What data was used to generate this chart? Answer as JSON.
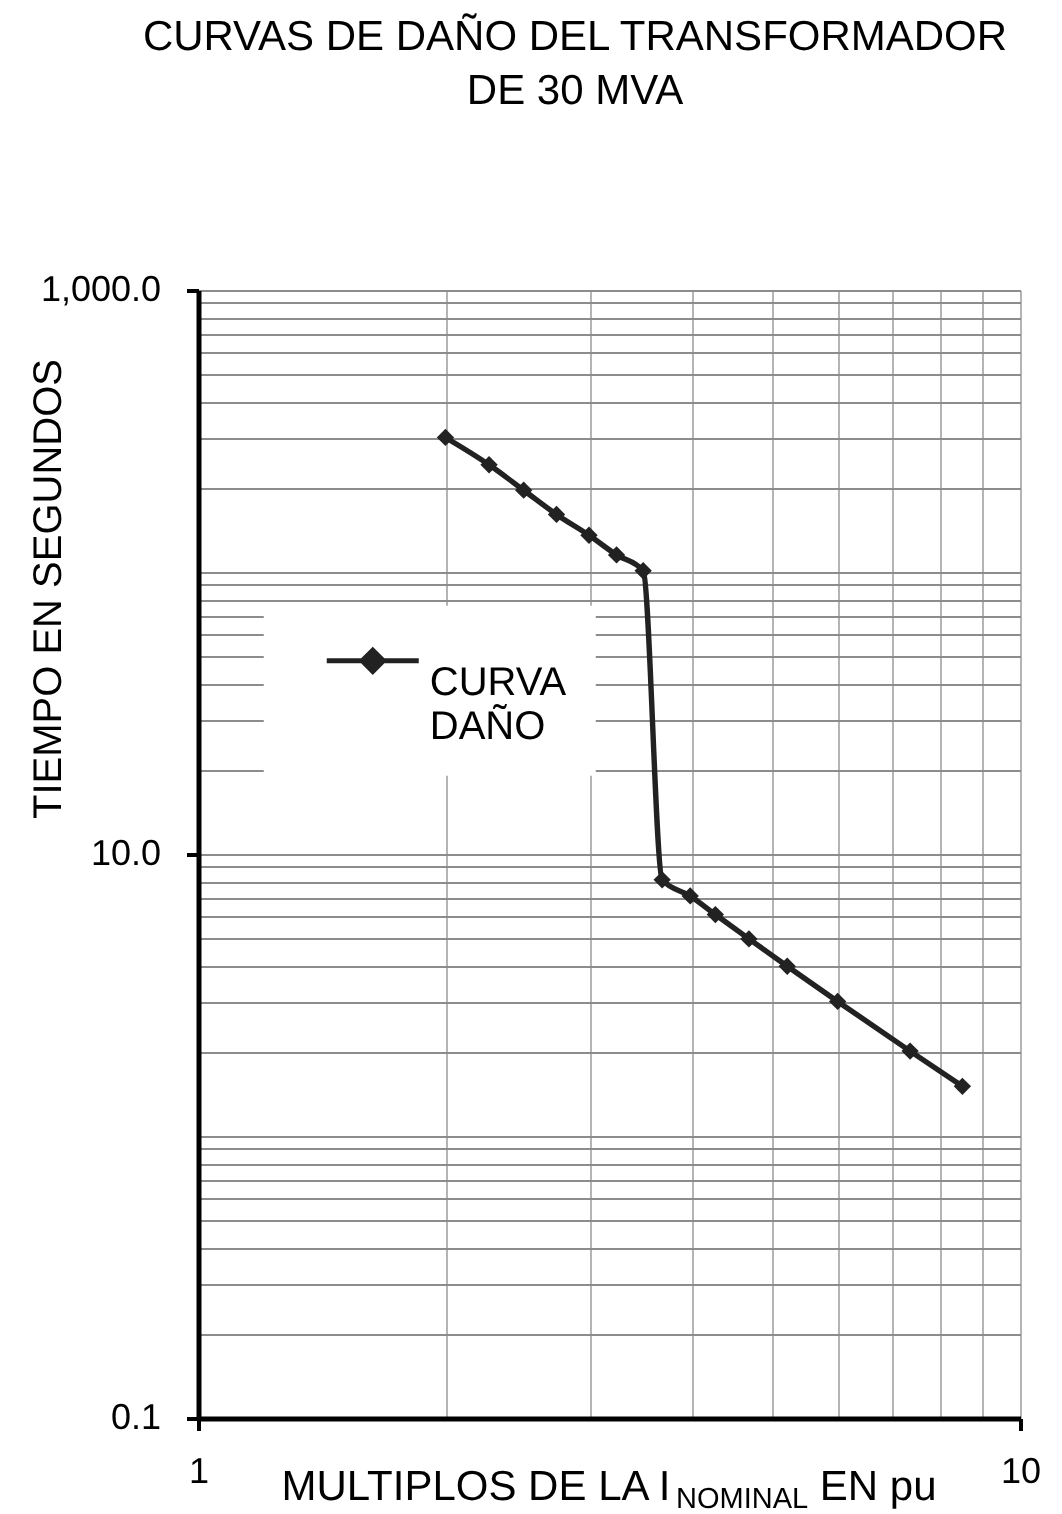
{
  "chart_data": {
    "type": "line",
    "title": "CURVAS DE DAÑO DEL TRANSFORMADOR DE 30 MVA",
    "xlabel": "MULTIPLOS DE LA I$_{NOMINAL}$ EN pu",
    "ylabel": "TIEMPO EN SEGUNDOS",
    "log": "xy",
    "xlim": [
      1,
      10
    ],
    "ylim": [
      0.1,
      1000
    ],
    "xticks": [
      1,
      10
    ],
    "yticks": [
      0.1,
      {
        "value": 10,
        "label": "10.0"
      },
      {
        "value": 1000,
        "label": "1,000.0"
      }
    ],
    "grid": true,
    "legend": "left",
    "marker": "diamond",
    "line_style": "solid",
    "x": [
      2.0,
      2.26,
      2.49,
      2.73,
      2.99,
      3.23,
      3.48,
      3.67,
      3.97,
      4.26,
      4.68,
      5.21,
      6.0,
      7.35,
      8.51
    ],
    "series": [
      {
        "name": "CURVA DAÑO",
        "color": "#222222",
        "values": [
          300,
          240,
          195,
          160,
          135,
          115,
          101,
          8.1,
          7.1,
          6.1,
          5.0,
          4.0,
          3.0,
          2.0,
          1.5
        ]
      }
    ]
  }
}
